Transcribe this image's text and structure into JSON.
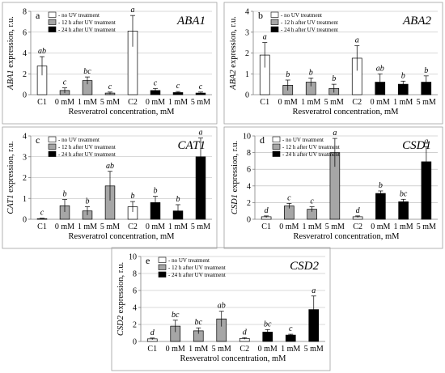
{
  "legend_labels": [
    "- no UV treatment",
    "- 12 h after UV treatment",
    "- 24 h after UV treatment"
  ],
  "colors": {
    "none": "#ffffff",
    "h12": "#a6a6a6",
    "h24": "#000000",
    "axis": "#808080",
    "grid": "#b3b3b3",
    "border": "#a0a0a0"
  },
  "chart_data": [
    {
      "type": "bar",
      "panel": "a",
      "title": "ABA1",
      "ylabel": "ABA1 expression, r.u.",
      "xlabel": "Resveratrol concentration, mM",
      "categories": [
        "C1",
        "0 mM",
        "1 mM",
        "5 mM",
        "C2",
        "0 mM",
        "1 mM",
        "5 mM"
      ],
      "groups": [
        "none",
        "h12",
        "h12",
        "h12",
        "none",
        "h24",
        "h24",
        "h24"
      ],
      "values": [
        2.75,
        0.4,
        1.35,
        0.15,
        6.1,
        0.4,
        0.2,
        0.15
      ],
      "errors": [
        0.9,
        0.25,
        0.35,
        0.1,
        1.5,
        0.2,
        0.1,
        0.1
      ],
      "letters": [
        "ab",
        "c",
        "bc",
        "c",
        "a",
        "c",
        "c",
        "c"
      ],
      "ylim": [
        0,
        8
      ],
      "yticks": [
        0,
        2,
        4,
        6,
        8
      ],
      "ytick_labels": [
        "0",
        "2",
        "4",
        "6",
        "8"
      ],
      "grid": true,
      "legend": "top-left"
    },
    {
      "type": "bar",
      "panel": "b",
      "title": "ABA2",
      "ylabel": "ABA2 expression, r.u.",
      "xlabel": "Resveratrol concentration, mM",
      "categories": [
        "C1",
        "0 mM",
        "1 mM",
        "5 mM",
        "C2",
        "0 mM",
        "1 mM",
        "5 mM"
      ],
      "groups": [
        "none",
        "h12",
        "h12",
        "h12",
        "none",
        "h24",
        "h24",
        "h24"
      ],
      "values": [
        1.9,
        0.45,
        0.6,
        0.3,
        1.75,
        0.6,
        0.5,
        0.6
      ],
      "errors": [
        0.6,
        0.25,
        0.2,
        0.2,
        0.6,
        0.4,
        0.15,
        0.3
      ],
      "letters": [
        "a",
        "b",
        "b",
        "b",
        "a",
        "ab",
        "b",
        "b"
      ],
      "ylim": [
        0,
        4
      ],
      "yticks": [
        0,
        1,
        2,
        3,
        4
      ],
      "ytick_labels": [
        "0",
        "1",
        "2",
        "3",
        "4"
      ],
      "grid": true,
      "legend": "top-left"
    },
    {
      "type": "bar",
      "panel": "c",
      "title": "CAT1",
      "ylabel": "CAT1 expression, r.u.",
      "xlabel": "Resveratrol concentration, mM",
      "categories": [
        "C1",
        "0 mM",
        "1 mM",
        "5 mM",
        "C2",
        "0 mM",
        "1 mM",
        "5 mM"
      ],
      "groups": [
        "none",
        "h12",
        "h12",
        "h12",
        "none",
        "h24",
        "h24",
        "h24"
      ],
      "values": [
        0.03,
        0.65,
        0.4,
        1.6,
        0.6,
        0.8,
        0.4,
        3.0
      ],
      "errors": [
        0.02,
        0.3,
        0.2,
        0.7,
        0.25,
        0.3,
        0.3,
        0.9
      ],
      "letters": [
        "c",
        "b",
        "b",
        "ab",
        "b",
        "b",
        "b",
        "a"
      ],
      "ylim": [
        0,
        4
      ],
      "yticks": [
        0,
        1,
        2,
        3,
        4
      ],
      "ytick_labels": [
        "0",
        "1",
        "2",
        "3",
        "4"
      ],
      "grid": true,
      "legend": "top-left"
    },
    {
      "type": "bar",
      "panel": "d",
      "title": "CSD1",
      "ylabel": "CSD1 expression, r.u.",
      "xlabel": "Resveratrol concentration, mM",
      "categories": [
        "C1",
        "0 mM",
        "1 mM",
        "5 mM",
        "C2",
        "0 mM",
        "1 mM",
        "5 mM"
      ],
      "groups": [
        "none",
        "h12",
        "h12",
        "h12",
        "none",
        "h24",
        "h24",
        "h24"
      ],
      "values": [
        0.3,
        1.6,
        1.2,
        8.0,
        0.3,
        3.1,
        2.1,
        6.9
      ],
      "errors": [
        0.1,
        0.3,
        0.3,
        1.7,
        0.1,
        0.3,
        0.3,
        1.8
      ],
      "letters": [
        "d",
        "c",
        "c",
        "a",
        "d",
        "b",
        "bc",
        "a"
      ],
      "ylim": [
        0,
        10
      ],
      "yticks": [
        0,
        2,
        4,
        6,
        8,
        10
      ],
      "ytick_labels": [
        "0",
        "2",
        "4",
        "6",
        "8",
        "10"
      ],
      "grid": true,
      "legend": "top-left"
    },
    {
      "type": "bar",
      "panel": "e",
      "title": "CSD2",
      "ylabel": "CSD2 expression, r.u.",
      "xlabel": "Resveratrol concentration, mM",
      "categories": [
        "C1",
        "0 mM",
        "1 mM",
        "5 mM",
        "C2",
        "0 mM",
        "1 mM",
        "5 mM"
      ],
      "groups": [
        "none",
        "h12",
        "h12",
        "h12",
        "none",
        "h24",
        "h24",
        "h24"
      ],
      "values": [
        0.3,
        1.8,
        1.25,
        2.65,
        0.35,
        1.1,
        0.75,
        3.75
      ],
      "errors": [
        0.1,
        0.7,
        0.35,
        0.9,
        0.1,
        0.3,
        0.1,
        1.6
      ],
      "letters": [
        "d",
        "bc",
        "bc",
        "ab",
        "d",
        "bc",
        "c",
        "a"
      ],
      "ylim": [
        0,
        10
      ],
      "yticks": [
        0,
        2,
        4,
        6,
        8,
        10
      ],
      "ytick_labels": [
        "0",
        "2",
        "4",
        "6",
        "8",
        "10"
      ],
      "grid": true,
      "legend": "top-left"
    }
  ]
}
